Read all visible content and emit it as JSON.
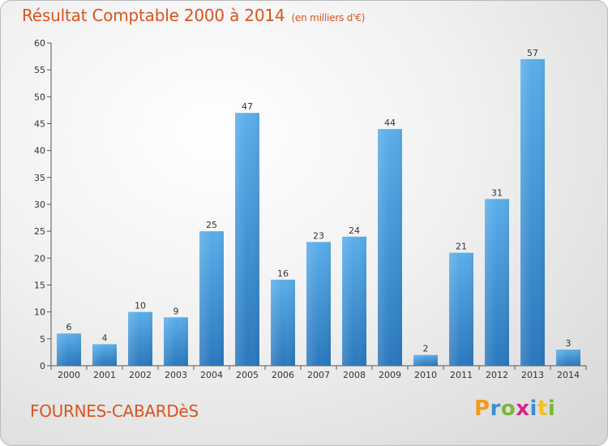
{
  "header": {
    "title": "Résultat Comptable 2000 à 2014",
    "subtitle": "(en milliers d'€)"
  },
  "footer": {
    "commune": "FOURNES-CABARDèS",
    "logo": [
      "P",
      "r",
      "o",
      "x",
      "i",
      "t",
      "i"
    ]
  },
  "chart_data": {
    "type": "bar",
    "title": "Résultat Comptable 2000 à 2014",
    "subtitle": "(en milliers d'€)",
    "categories": [
      "2000",
      "2001",
      "2002",
      "2003",
      "2004",
      "2005",
      "2006",
      "2007",
      "2008",
      "2009",
      "2010",
      "2011",
      "2012",
      "2013",
      "2014"
    ],
    "values": [
      6,
      4,
      10,
      9,
      25,
      47,
      16,
      23,
      24,
      44,
      2,
      21,
      31,
      57,
      3
    ],
    "ylim": [
      0,
      60
    ],
    "yticks": [
      0,
      5,
      10,
      15,
      20,
      25,
      30,
      35,
      40,
      45,
      50,
      55,
      60
    ],
    "grid": false,
    "bar_color": "#3d8fd6",
    "data_labels": true
  }
}
